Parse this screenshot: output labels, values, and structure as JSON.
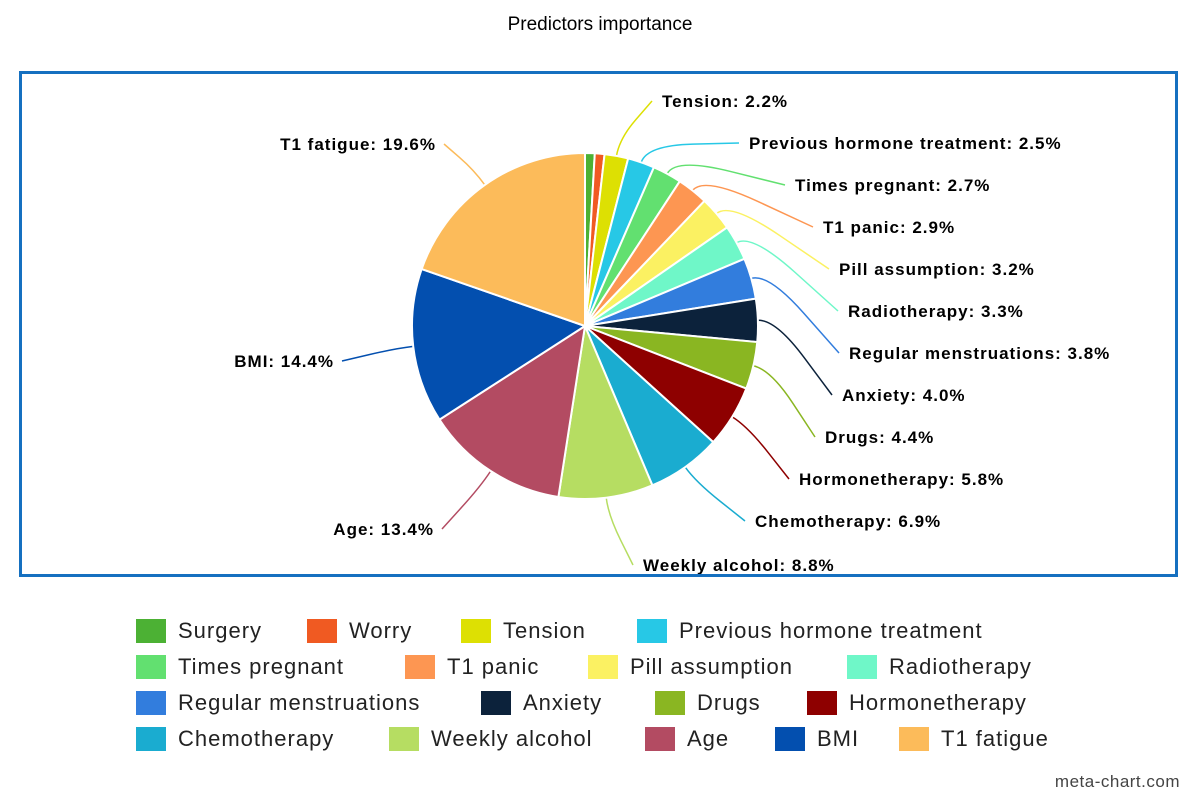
{
  "chart_data": {
    "type": "pie",
    "title": "Predictors importance",
    "slices": [
      {
        "label": "Surgery",
        "value": 0.9,
        "color": "#4cb134",
        "display": ""
      },
      {
        "label": "Worry",
        "value": 0.9,
        "color": "#f05a22",
        "display": ""
      },
      {
        "label": "Tension",
        "value": 2.2,
        "color": "#dde003",
        "display": "Tension: 2.2%"
      },
      {
        "label": "Previous hormone treatment",
        "value": 2.5,
        "color": "#27c8e6",
        "display": "Previous hormone treatment: 2.5%"
      },
      {
        "label": "Times pregnant",
        "value": 2.7,
        "color": "#62e070",
        "display": "Times pregnant: 2.7%"
      },
      {
        "label": "T1 panic",
        "value": 2.9,
        "color": "#fd9652",
        "display": "T1 panic: 2.9%"
      },
      {
        "label": "Pill assumption",
        "value": 3.2,
        "color": "#fbf162",
        "display": "Pill assumption: 3.2%"
      },
      {
        "label": "Radiotherapy",
        "value": 3.3,
        "color": "#6ff7c8",
        "display": "Radiotherapy: 3.3%"
      },
      {
        "label": "Regular menstruations",
        "value": 3.8,
        "color": "#327ddd",
        "display": "Regular menstruations: 3.8%"
      },
      {
        "label": "Anxiety",
        "value": 4.0,
        "color": "#0c223b",
        "display": "Anxiety: 4.0%"
      },
      {
        "label": "Drugs",
        "value": 4.4,
        "color": "#8ab622",
        "display": "Drugs: 4.4%"
      },
      {
        "label": "Hormonetherapy",
        "value": 5.8,
        "color": "#8e0000",
        "display": "Hormonetherapy: 5.8%"
      },
      {
        "label": "Chemotherapy",
        "value": 6.9,
        "color": "#1aacd0",
        "display": "Chemotherapy: 6.9%"
      },
      {
        "label": "Weekly alcohol",
        "value": 8.8,
        "color": "#b6dd62",
        "display": "Weekly alcohol: 8.8%"
      },
      {
        "label": "Age",
        "value": 13.4,
        "color": "#b34b62",
        "display": "Age: 13.4%"
      },
      {
        "label": "BMI",
        "value": 14.4,
        "color": "#034faf",
        "display": "BMI: 14.4%"
      },
      {
        "label": "T1 fatigue",
        "value": 19.6,
        "color": "#fcbb5a",
        "display": "T1 fatigue: 19.6%"
      }
    ],
    "legend_position": "bottom"
  },
  "credit": "meta-chart.com",
  "frame_color": "#1570c0"
}
